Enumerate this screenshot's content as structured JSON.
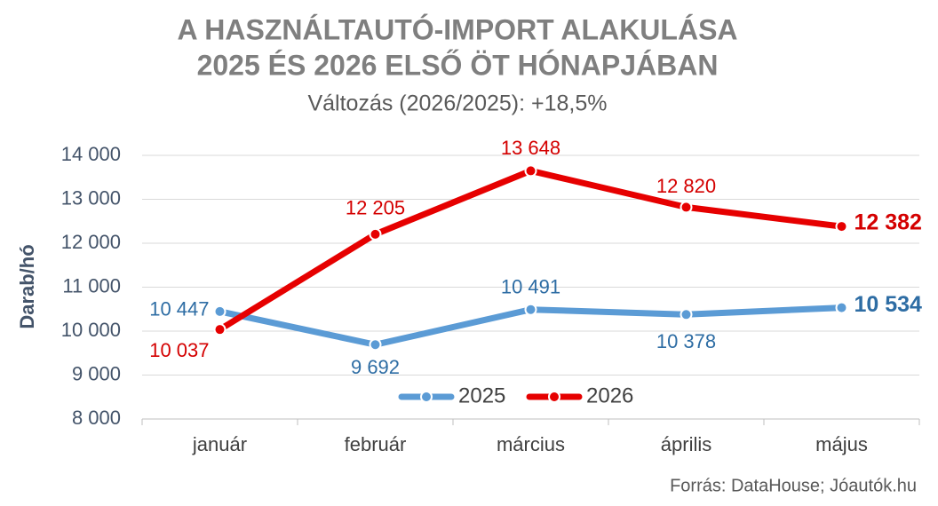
{
  "chart_data": {
    "type": "line",
    "title": [
      "A HASZNÁLTAUTÓ-IMPORT ALAKULÁSA",
      "2025 ÉS 2026 ELSŐ ÖT HÓNAPJÁBAN"
    ],
    "subtitle": "Változás (2026/2025): +18,5%",
    "y_label": "Darab/hó",
    "source": "Forrás: DataHouse; Jóautók.hu",
    "categories": [
      "január",
      "február",
      "március",
      "április",
      "május"
    ],
    "series": [
      {
        "name": "2025",
        "color": "#5b9bd5",
        "label_color": "#2e6da4",
        "values": [
          10447,
          9692,
          10491,
          10378,
          10534
        ],
        "value_labels": [
          "10 447",
          "9 692",
          "10 491",
          "10 378",
          "10 534"
        ]
      },
      {
        "name": "2026",
        "color": "#e60000",
        "label_color": "#d40000",
        "values": [
          10037,
          12205,
          13648,
          12820,
          12382
        ],
        "value_labels": [
          "10 037",
          "12 205",
          "13 648",
          "12 820",
          "12 382"
        ]
      }
    ],
    "ylim": [
      8000,
      14000
    ],
    "yticks": [
      {
        "value": 8000,
        "label": "8 000"
      },
      {
        "value": 9000,
        "label": "9 000"
      },
      {
        "value": 10000,
        "label": "10 000"
      },
      {
        "value": 11000,
        "label": "11 000"
      },
      {
        "value": 12000,
        "label": "12 000"
      },
      {
        "value": 13000,
        "label": "13 000"
      },
      {
        "value": 14000,
        "label": "14 000"
      }
    ],
    "grid": true
  }
}
